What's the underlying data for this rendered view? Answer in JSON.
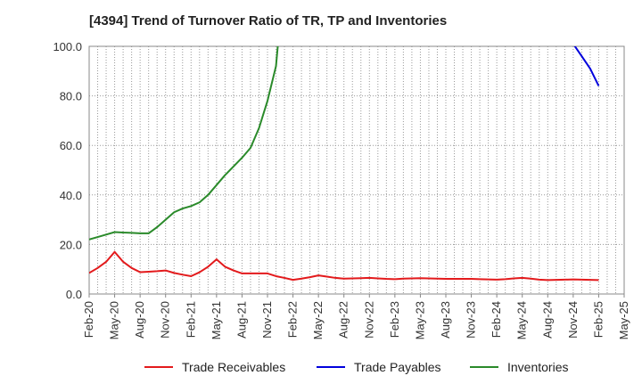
{
  "chart_data": {
    "type": "line",
    "title": "[4394]  Trend of Turnover Ratio of TR, TP and Inventories",
    "xlabel": "",
    "ylabel": "",
    "ylim": [
      0,
      100
    ],
    "yticks": [
      "0.0",
      "20.0",
      "40.0",
      "60.0",
      "80.0",
      "100.0"
    ],
    "x": [
      "Feb-20",
      "Mar-20",
      "Apr-20",
      "May-20",
      "Jun-20",
      "Jul-20",
      "Aug-20",
      "Sep-20",
      "Oct-20",
      "Nov-20",
      "Dec-20",
      "Jan-21",
      "Feb-21",
      "Mar-21",
      "Apr-21",
      "May-21",
      "Jun-21",
      "Jul-21",
      "Aug-21",
      "Sep-21",
      "Oct-21",
      "Nov-21",
      "Dec-21",
      "Jan-22",
      "Feb-22",
      "Mar-22",
      "Apr-22",
      "May-22",
      "Jun-22",
      "Jul-22",
      "Aug-22",
      "Sep-22",
      "Oct-22",
      "Nov-22",
      "Dec-22",
      "Jan-23",
      "Feb-23",
      "Mar-23",
      "Apr-23",
      "May-23",
      "Jun-23",
      "Jul-23",
      "Aug-23",
      "Sep-23",
      "Oct-23",
      "Nov-23",
      "Dec-23",
      "Jan-24",
      "Feb-24",
      "Mar-24",
      "Apr-24",
      "May-24",
      "Jun-24",
      "Jul-24",
      "Aug-24",
      "Sep-24",
      "Oct-24",
      "Nov-24",
      "Dec-24",
      "Jan-25",
      "Feb-25",
      "Mar-25",
      "Apr-25",
      "May-25"
    ],
    "xtick_labels": [
      "Feb-20",
      "May-20",
      "Aug-20",
      "Nov-20",
      "Feb-21",
      "May-21",
      "Aug-21",
      "Nov-21",
      "Feb-22",
      "May-22",
      "Aug-22",
      "Nov-22",
      "Feb-23",
      "May-23",
      "Aug-23",
      "Nov-23",
      "Feb-24",
      "May-24",
      "Aug-24",
      "Nov-24",
      "Feb-25",
      "May-25"
    ],
    "grid": true,
    "legend_position": "bottom",
    "series": [
      {
        "name": "Trade Receivables",
        "color": "#e31a1c",
        "values": [
          8.5,
          10.5,
          13,
          17,
          13,
          10.5,
          8.8,
          9,
          9.2,
          9.5,
          8.5,
          7.8,
          7.2,
          8.8,
          11,
          14,
          11,
          9.5,
          8.3,
          8.3,
          8.3,
          8.3,
          7.2,
          6.5,
          5.7,
          6.2,
          6.8,
          7.5,
          7,
          6.5,
          6.2,
          6.3,
          6.4,
          6.5,
          6.3,
          6.1,
          6,
          6.2,
          6.3,
          6.4,
          6.3,
          6.2,
          6.1,
          6.1,
          6.1,
          6.1,
          6,
          5.9,
          5.8,
          6,
          6.3,
          6.5,
          6.2,
          5.8,
          5.6,
          5.7,
          5.8,
          5.9,
          5.8,
          5.7,
          5.6,
          null,
          null,
          null
        ]
      },
      {
        "name": "Trade Payables",
        "color": "#0000dd",
        "values": [
          null,
          null,
          null,
          null,
          null,
          null,
          null,
          null,
          null,
          null,
          null,
          null,
          null,
          null,
          null,
          null,
          null,
          null,
          null,
          null,
          null,
          null,
          null,
          null,
          null,
          null,
          null,
          null,
          null,
          null,
          null,
          null,
          null,
          null,
          null,
          null,
          null,
          null,
          null,
          null,
          null,
          null,
          null,
          null,
          null,
          null,
          null,
          null,
          null,
          null,
          null,
          null,
          null,
          null,
          null,
          null,
          null,
          101,
          96,
          91,
          84,
          null,
          null,
          null
        ]
      },
      {
        "name": "Inventories",
        "color": "#2a8a2a",
        "values": [
          22,
          23,
          24,
          25,
          24.8,
          24.7,
          24.5,
          24.5,
          27,
          30,
          33,
          34.5,
          35.5,
          37,
          40,
          44,
          48,
          51.5,
          55,
          59,
          67,
          78,
          92,
          130,
          null,
          null,
          null,
          null,
          null,
          null,
          null,
          null,
          null,
          null,
          null,
          null,
          null,
          null,
          null,
          null,
          null,
          null,
          null,
          null,
          null,
          null,
          null,
          null,
          null,
          null,
          null,
          null,
          null,
          null,
          null,
          null,
          null,
          null,
          null,
          null,
          null,
          null,
          null,
          null
        ]
      }
    ]
  }
}
